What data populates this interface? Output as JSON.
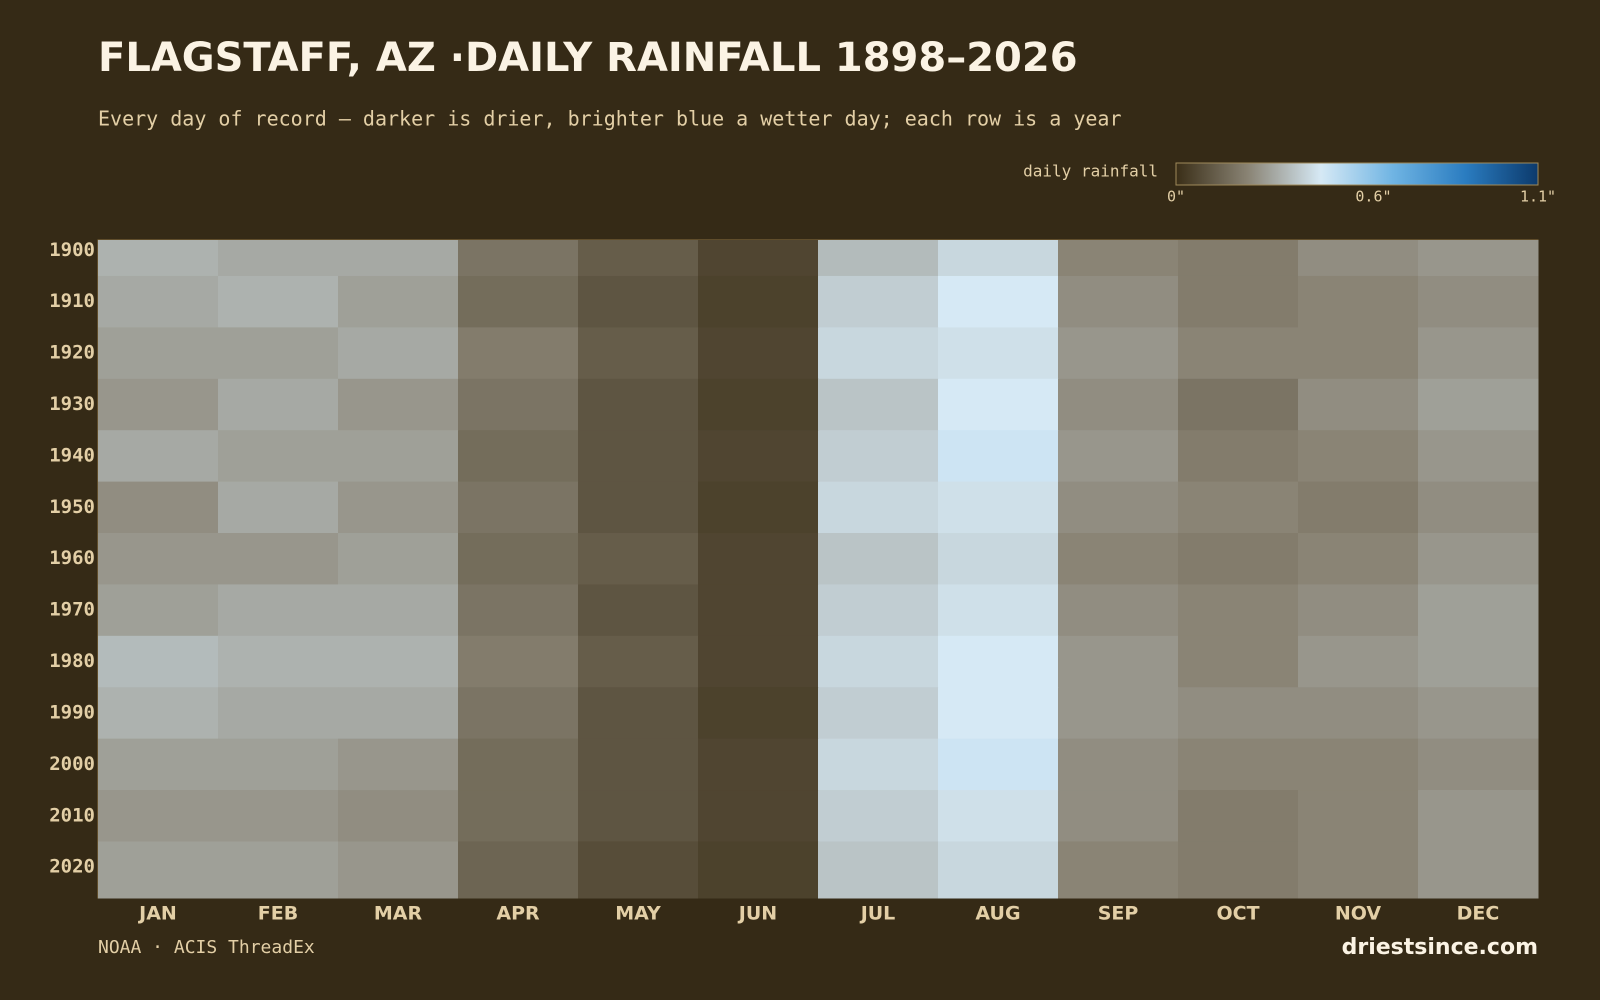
{
  "chart_data": {
    "type": "heatmap",
    "title": "FLAGSTAFF, AZ ·DAILY RAINFALL 1898–2026",
    "subtitle": "Every day of record — darker is drier, brighter blue a wetter day; each row is a year",
    "source": "NOAA · ACIS ThreadEx",
    "brand": "driestsince.com",
    "colorbar_label": "daily rainfall",
    "clim": [
      0,
      1.1
    ],
    "colorbar_ticks": [
      {
        "value": 0,
        "label": "0\""
      },
      {
        "value": 0.6,
        "label": "0.6\""
      },
      {
        "value": 1.1,
        "label": "1.1\""
      }
    ],
    "colorscale": [
      "#3a2e17",
      "#8a8475",
      "#d6e9f5",
      "#6fb4e3",
      "#2a7cc0",
      "#0c3a6c"
    ],
    "categories": [
      "JAN",
      "FEB",
      "MAR",
      "APR",
      "MAY",
      "JUN",
      "JUL",
      "AUG",
      "SEP",
      "OCT",
      "NOV",
      "DEC"
    ],
    "ylim": [
      1898,
      2026
    ],
    "yticks": [
      1900,
      1910,
      1920,
      1930,
      1940,
      1950,
      1960,
      1970,
      1980,
      1990,
      2000,
      2010,
      2020
    ],
    "values": [
      [
        0.32,
        0.3,
        0.3,
        0.18,
        0.12,
        0.06,
        0.34,
        0.4,
        0.22,
        0.2,
        0.24,
        0.26
      ],
      [
        0.3,
        0.32,
        0.28,
        0.16,
        0.1,
        0.05,
        0.38,
        0.44,
        0.24,
        0.2,
        0.22,
        0.24
      ],
      [
        0.28,
        0.28,
        0.3,
        0.2,
        0.12,
        0.06,
        0.4,
        0.42,
        0.26,
        0.22,
        0.22,
        0.26
      ],
      [
        0.26,
        0.3,
        0.26,
        0.18,
        0.1,
        0.05,
        0.36,
        0.44,
        0.24,
        0.18,
        0.24,
        0.28
      ],
      [
        0.3,
        0.28,
        0.28,
        0.16,
        0.1,
        0.06,
        0.38,
        0.46,
        0.26,
        0.2,
        0.22,
        0.26
      ],
      [
        0.24,
        0.3,
        0.26,
        0.18,
        0.1,
        0.05,
        0.4,
        0.42,
        0.24,
        0.22,
        0.2,
        0.24
      ],
      [
        0.26,
        0.26,
        0.28,
        0.16,
        0.12,
        0.06,
        0.36,
        0.4,
        0.22,
        0.2,
        0.22,
        0.26
      ],
      [
        0.28,
        0.3,
        0.3,
        0.18,
        0.1,
        0.06,
        0.38,
        0.42,
        0.24,
        0.22,
        0.24,
        0.28
      ],
      [
        0.34,
        0.32,
        0.32,
        0.2,
        0.12,
        0.06,
        0.4,
        0.44,
        0.26,
        0.22,
        0.26,
        0.28
      ],
      [
        0.32,
        0.3,
        0.3,
        0.18,
        0.1,
        0.05,
        0.38,
        0.44,
        0.26,
        0.24,
        0.24,
        0.26
      ],
      [
        0.28,
        0.28,
        0.26,
        0.16,
        0.1,
        0.06,
        0.4,
        0.46,
        0.24,
        0.22,
        0.22,
        0.24
      ],
      [
        0.26,
        0.26,
        0.24,
        0.16,
        0.1,
        0.06,
        0.38,
        0.42,
        0.24,
        0.2,
        0.22,
        0.26
      ],
      [
        0.28,
        0.28,
        0.26,
        0.14,
        0.08,
        0.05,
        0.36,
        0.4,
        0.22,
        0.2,
        0.22,
        0.26
      ]
    ]
  }
}
